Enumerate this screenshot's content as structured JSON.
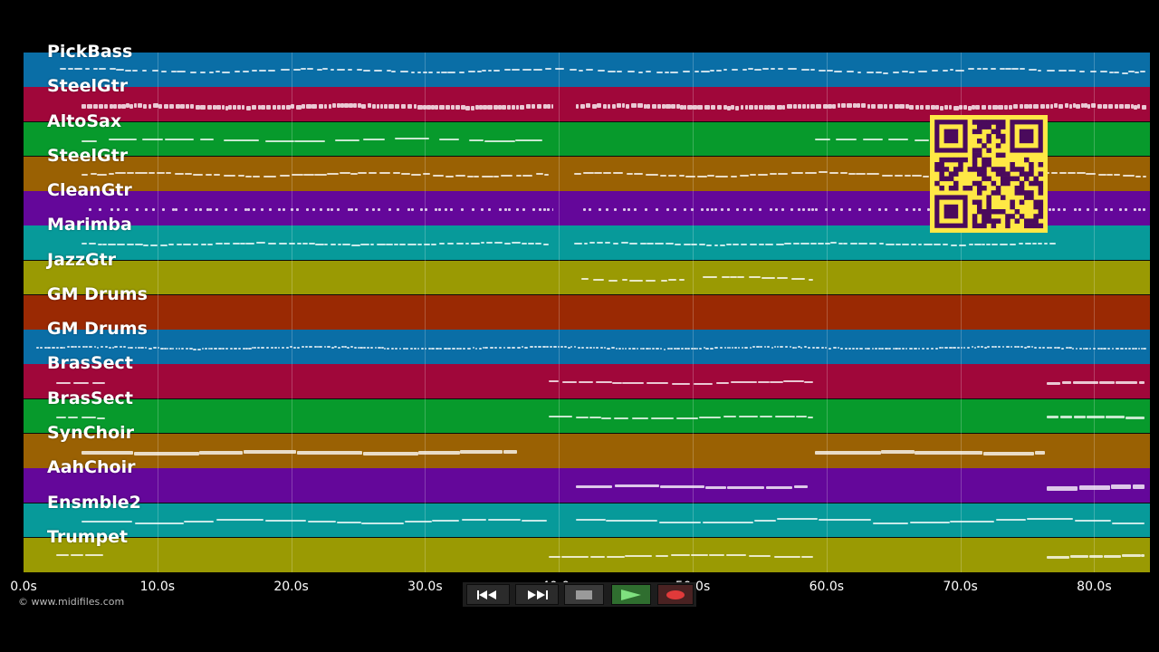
{
  "tracks": [
    {
      "label": "PickBass",
      "color": "#0a6ea6"
    },
    {
      "label": "SteelGtr",
      "color": "#a0073a"
    },
    {
      "label": "AltoSax",
      "color": "#079a2c"
    },
    {
      "label": "SteelGtr",
      "color": "#9a6103"
    },
    {
      "label": "CleanGtr",
      "color": "#64079a"
    },
    {
      "label": "Marimba",
      "color": "#079a9a"
    },
    {
      "label": "JazzGtr",
      "color": "#9a9a03"
    },
    {
      "label": "GM Drums",
      "color": "#9a2903"
    },
    {
      "label": "GM Drums",
      "color": "#0a6ea6"
    },
    {
      "label": "BrasSect",
      "color": "#a0073a"
    },
    {
      "label": "BrasSect",
      "color": "#079a2c"
    },
    {
      "label": "SynChoir",
      "color": "#9a6103"
    },
    {
      "label": "AahChoir",
      "color": "#64079a"
    },
    {
      "label": "Ensmble2",
      "color": "#079a9a"
    },
    {
      "label": "Trumpet",
      "color": "#9a9a03"
    }
  ],
  "timeline": {
    "ticks": [
      "0.0s",
      "10.0s",
      "20.0s",
      "30.0s",
      "40.0s",
      "50.0s",
      "60.0s",
      "70.0s",
      "80.0s"
    ]
  },
  "footer": {
    "copyright": "© www.midifiles.com"
  },
  "transport": {
    "rewind_icon": "rewind-icon",
    "fast_forward_icon": "fast-forward-icon",
    "stop_icon": "stop-icon",
    "play_icon": "play-icon",
    "record_icon": "record-icon"
  },
  "qr": {
    "color": "#ffe845",
    "dark": "#4a0a5c"
  }
}
